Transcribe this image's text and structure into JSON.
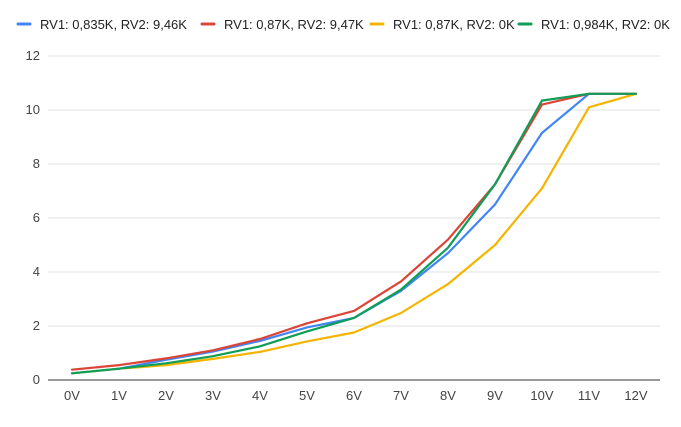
{
  "chart_data": {
    "type": "line",
    "title": "",
    "xlabel": "",
    "ylabel": "",
    "categories": [
      "0V",
      "1V",
      "2V",
      "3V",
      "4V",
      "5V",
      "6V",
      "7V",
      "8V",
      "9V",
      "10V",
      "11V",
      "12V"
    ],
    "ylim": [
      0,
      12
    ],
    "yticks": [
      0,
      2,
      4,
      6,
      8,
      10,
      12
    ],
    "grid": true,
    "legend_position": "top",
    "series": [
      {
        "name": "RV1: 0,835K, RV2: 9,46K",
        "color": "#4285F4",
        "values": [
          0.25,
          0.42,
          0.75,
          1.05,
          1.45,
          1.95,
          2.3,
          3.3,
          4.7,
          6.5,
          9.15,
          10.6,
          10.6
        ]
      },
      {
        "name": "RV1: 0,87K, RV2: 9,47K",
        "color": "#DB4437",
        "values": [
          0.38,
          0.55,
          0.8,
          1.1,
          1.52,
          2.1,
          2.56,
          3.65,
          5.2,
          7.25,
          10.2,
          10.6,
          10.6
        ]
      },
      {
        "name": "RV1: 0,87K, RV2: 0K",
        "color": "#F4B400",
        "values": [
          0.25,
          0.42,
          0.55,
          0.78,
          1.04,
          1.43,
          1.76,
          2.48,
          3.55,
          5.0,
          7.1,
          10.1,
          10.6
        ]
      },
      {
        "name": "RV1: 0,984K, RV2: 0K",
        "color": "#0F9D58",
        "values": [
          0.25,
          0.42,
          0.62,
          0.88,
          1.25,
          1.8,
          2.3,
          3.35,
          4.9,
          7.25,
          10.35,
          10.6,
          10.6
        ]
      }
    ]
  }
}
